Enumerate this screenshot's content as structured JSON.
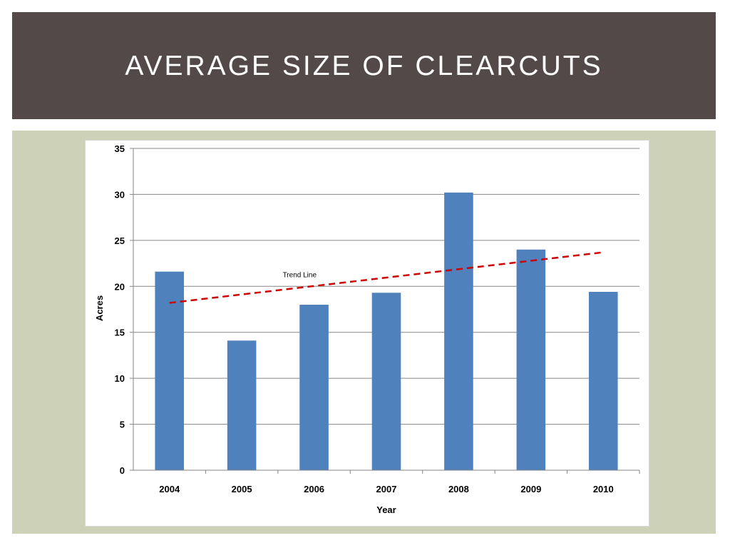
{
  "slide": {
    "title": "AVERAGE SIZE OF CLEARCUTS",
    "title_bar_color": "#524948",
    "panel_color": "#cdd1b8"
  },
  "chart_data": {
    "type": "bar",
    "categories": [
      "2004",
      "2005",
      "2006",
      "2007",
      "2008",
      "2009",
      "2010"
    ],
    "values": [
      21.6,
      14.1,
      18.0,
      19.3,
      30.2,
      24.0,
      19.4
    ],
    "xlabel": "Year",
    "ylabel": "Acres",
    "ylim": [
      0,
      35
    ],
    "yticks": [
      0,
      5,
      10,
      15,
      20,
      25,
      30,
      35
    ],
    "grid": true,
    "legend": "none",
    "bar_color": "#4f81bd",
    "trendline": {
      "label": "Trend Line",
      "start": 18.2,
      "end": 23.7,
      "color": "#cc0000",
      "style": "dashed"
    }
  }
}
